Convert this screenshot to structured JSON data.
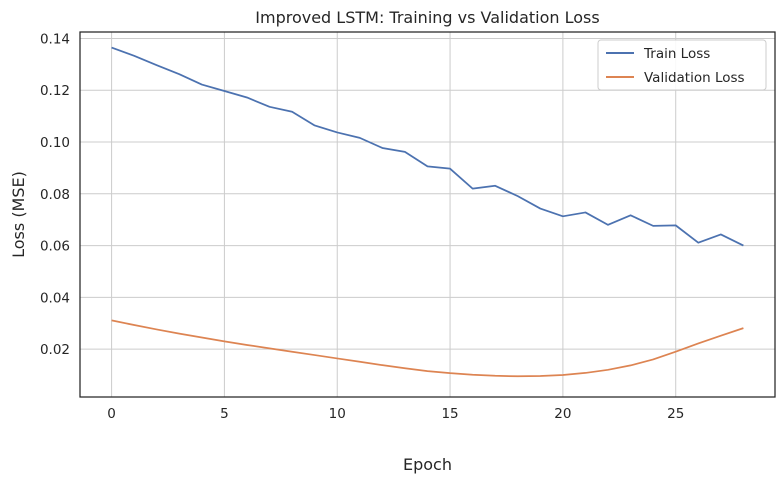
{
  "chart_data": {
    "type": "line",
    "title": "Improved LSTM: Training vs Validation Loss",
    "xlabel": "Epoch",
    "ylabel": "Loss (MSE)",
    "xlim": [
      -1.4,
      29.4
    ],
    "ylim": [
      0.0015,
      0.1425
    ],
    "xticks": [
      0,
      5,
      10,
      15,
      20,
      25
    ],
    "xtick_labels": [
      "0",
      "5",
      "10",
      "15",
      "20",
      "25"
    ],
    "yticks": [
      0.02,
      0.04,
      0.06,
      0.08,
      0.1,
      0.12,
      0.14
    ],
    "ytick_labels": [
      "0.02",
      "0.04",
      "0.06",
      "0.08",
      "0.10",
      "0.12",
      "0.14"
    ],
    "grid": true,
    "legend_position": "top-right",
    "x": [
      0,
      1,
      2,
      3,
      4,
      5,
      6,
      7,
      8,
      9,
      10,
      11,
      12,
      13,
      14,
      15,
      16,
      17,
      18,
      19,
      20,
      21,
      22,
      23,
      24,
      25,
      26,
      27,
      28
    ],
    "series": [
      {
        "name": "Train Loss",
        "color": "#4c72b0",
        "values": [
          0.1365,
          0.1333,
          0.1297,
          0.1262,
          0.1222,
          0.1197,
          0.1172,
          0.1136,
          0.1117,
          0.1064,
          0.1037,
          0.1016,
          0.0977,
          0.0962,
          0.0906,
          0.0897,
          0.082,
          0.0831,
          0.0791,
          0.0743,
          0.0713,
          0.0728,
          0.068,
          0.0717,
          0.0676,
          0.0678,
          0.0611,
          0.0643,
          0.06
        ]
      },
      {
        "name": "Validation Loss",
        "color": "#dd8452",
        "values": [
          0.0311,
          0.0293,
          0.0276,
          0.026,
          0.0245,
          0.023,
          0.0216,
          0.0203,
          0.019,
          0.0177,
          0.0164,
          0.0151,
          0.0138,
          0.0126,
          0.0115,
          0.0107,
          0.0101,
          0.0097,
          0.0095,
          0.0096,
          0.01,
          0.0108,
          0.012,
          0.0137,
          0.016,
          0.019,
          0.0222,
          0.0252,
          0.0281
        ]
      }
    ]
  }
}
